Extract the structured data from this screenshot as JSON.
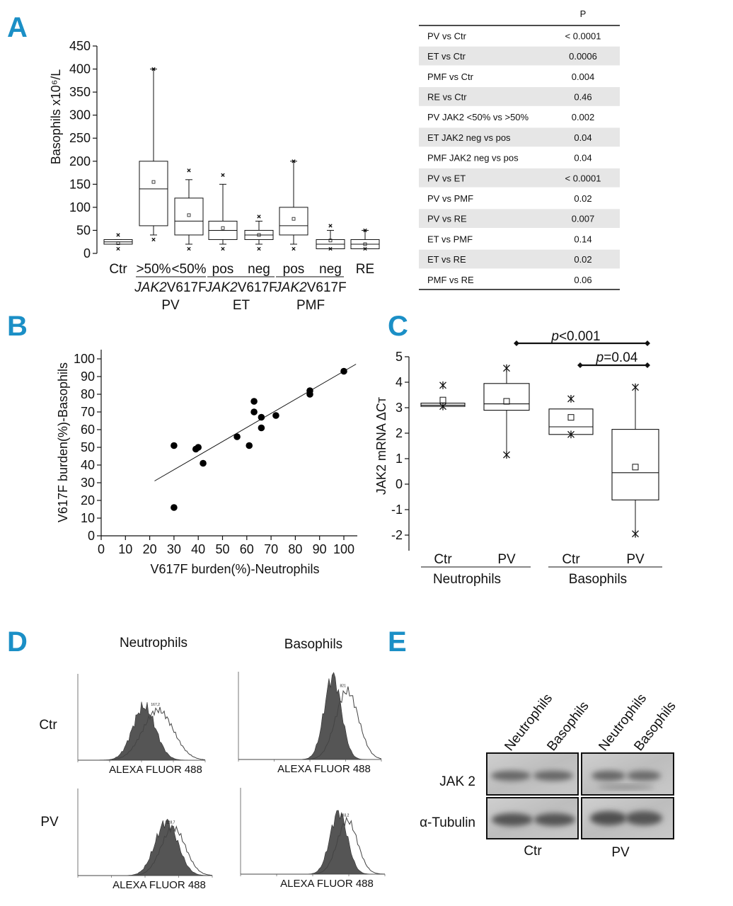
{
  "panels": {
    "a": {
      "label": "A",
      "chart": {
        "type": "box",
        "ylabel": "Basophils x10⁶/L",
        "ylim": [
          0,
          450
        ],
        "yticks": [
          0,
          50,
          100,
          150,
          200,
          250,
          300,
          350,
          400,
          450
        ],
        "categories": [
          "Ctr",
          ">50%",
          "<50%",
          "pos",
          "neg",
          "pos",
          "neg",
          "RE"
        ],
        "groups": [
          {
            "label": "PV",
            "mutation_label": "JAK2V617F"
          },
          {
            "label": "ET",
            "mutation_label": "JAK2V617F"
          },
          {
            "label": "PMF",
            "mutation_label": "JAK2V617F"
          }
        ],
        "boxes": [
          {
            "category": "Ctr",
            "min": 20,
            "q1": 20,
            "median": 25,
            "q3": 30,
            "max": 30,
            "mean": 22,
            "outliers": [
              10,
              40
            ]
          },
          {
            "category": ">50%",
            "min": 40,
            "q1": 60,
            "median": 140,
            "q3": 200,
            "max": 400,
            "mean": 155,
            "outliers": [
              30,
              400
            ]
          },
          {
            "category": "<50%",
            "min": 20,
            "q1": 40,
            "median": 70,
            "q3": 120,
            "max": 160,
            "mean": 83,
            "outliers": [
              10,
              180
            ]
          },
          {
            "category": "pos",
            "min": 20,
            "q1": 30,
            "median": 50,
            "q3": 70,
            "max": 150,
            "mean": 55,
            "outliers": [
              10,
              170
            ]
          },
          {
            "category": "neg",
            "min": 20,
            "q1": 30,
            "median": 40,
            "q3": 50,
            "max": 70,
            "mean": 40,
            "outliers": [
              10,
              80
            ]
          },
          {
            "category": "pos",
            "min": 20,
            "q1": 40,
            "median": 60,
            "q3": 100,
            "max": 200,
            "mean": 75,
            "outliers": [
              10,
              200
            ]
          },
          {
            "category": "neg",
            "min": 10,
            "q1": 10,
            "median": 20,
            "q3": 30,
            "max": 50,
            "mean": 28,
            "outliers": [
              10,
              60
            ]
          },
          {
            "category": "RE",
            "min": 10,
            "q1": 10,
            "median": 20,
            "q3": 30,
            "max": 50,
            "mean": 20,
            "outliers": [
              10,
              50
            ]
          }
        ]
      },
      "table": {
        "header": "P",
        "rows": [
          {
            "comparison": "PV vs Ctr",
            "p": "< 0.0001"
          },
          {
            "comparison": "ET vs Ctr",
            "p": "0.0006"
          },
          {
            "comparison": "PMF vs Ctr",
            "p": "0.004"
          },
          {
            "comparison": "RE vs Ctr",
            "p": "0.46"
          },
          {
            "comparison": "PV JAK2 <50% vs >50%",
            "p": "0.002"
          },
          {
            "comparison": "ET JAK2 neg vs pos",
            "p": "0.04"
          },
          {
            "comparison": "PMF JAK2 neg vs pos",
            "p": "0.04"
          },
          {
            "comparison": "PV vs ET",
            "p": "< 0.0001"
          },
          {
            "comparison": "PV vs PMF",
            "p": "0.02"
          },
          {
            "comparison": "PV vs RE",
            "p": "0.007"
          },
          {
            "comparison": "ET vs PMF",
            "p": "0.14"
          },
          {
            "comparison": "ET vs RE",
            "p": "0.02"
          },
          {
            "comparison": "PMF vs RE",
            "p": "0.06"
          }
        ],
        "shade_color": "#e6e6e6"
      }
    },
    "b": {
      "label": "B",
      "chart_data": {
        "type": "scatter",
        "xlabel": "V617F burden(%)-Neutrophils",
        "ylabel": "V617F burden(%)-Basophils",
        "xlim": [
          0,
          100
        ],
        "ylim": [
          0,
          100
        ],
        "xticks": [
          0,
          10,
          20,
          30,
          40,
          50,
          60,
          70,
          80,
          90,
          100
        ],
        "yticks": [
          0,
          10,
          20,
          30,
          40,
          50,
          60,
          70,
          80,
          90,
          100
        ],
        "points": [
          [
            30,
            51
          ],
          [
            30,
            16
          ],
          [
            39,
            49
          ],
          [
            40,
            50
          ],
          [
            42,
            41
          ],
          [
            56,
            56
          ],
          [
            61,
            51
          ],
          [
            63,
            76
          ],
          [
            63,
            70
          ],
          [
            66,
            67
          ],
          [
            66,
            61
          ],
          [
            72,
            68
          ],
          [
            86,
            82
          ],
          [
            86,
            80
          ],
          [
            100,
            93
          ]
        ],
        "fit_line": {
          "x": [
            22,
            105
          ],
          "y": [
            31,
            97
          ]
        }
      }
    },
    "c": {
      "label": "C",
      "chart": {
        "type": "box",
        "ylabel": "JAK2 mRNA ΔCт",
        "ylim": [
          -2,
          5
        ],
        "yticks": [
          -2,
          -1,
          0,
          1,
          2,
          3,
          4,
          5
        ],
        "categories": [
          "Ctr",
          "PV",
          "Ctr",
          "PV"
        ],
        "groups": [
          "Neutrophils",
          "Basophils"
        ],
        "boxes": [
          {
            "category": "Ctr",
            "min": 3.05,
            "q1": 3.05,
            "median": 3.1,
            "q3": 3.18,
            "max": 3.18,
            "mean": 3.3,
            "outliers": [
              3.05,
              3.88
            ]
          },
          {
            "category": "PV",
            "min": 1.15,
            "q1": 2.9,
            "median": 3.15,
            "q3": 3.95,
            "max": 4.55,
            "mean": 3.25,
            "outliers": [
              1.15,
              4.55
            ]
          },
          {
            "category": "Ctr",
            "min": 1.95,
            "q1": 1.95,
            "median": 2.25,
            "q3": 2.95,
            "max": 2.95,
            "mean": 2.62,
            "outliers": [
              1.95,
              3.35
            ]
          },
          {
            "category": "PV",
            "min": -1.95,
            "q1": -0.62,
            "median": 0.45,
            "q3": 2.15,
            "max": 3.8,
            "mean": 0.67,
            "outliers": [
              -1.95,
              3.8
            ]
          }
        ],
        "annotations": [
          {
            "text": "p<0.001",
            "from": 2,
            "to": 4
          },
          {
            "text": "p=0.04",
            "from": 3,
            "to": 4
          }
        ]
      }
    },
    "d": {
      "label": "D",
      "col_titles": [
        "Neutrophils",
        "Basophils"
      ],
      "row_titles": [
        "Ctr",
        "PV"
      ],
      "axis_label": "ALEXA FLUOR 488",
      "peaks": [
        "167,2",
        "821",
        "128,7",
        "393,2"
      ],
      "fill_color": "#555555"
    },
    "e": {
      "label": "E",
      "lane_labels": [
        "Neutrophils",
        "Basophils",
        "Neutrophils",
        "Basophils"
      ],
      "row_labels": [
        "JAK 2",
        "α-Tubulin"
      ],
      "group_labels": [
        "Ctr",
        "PV"
      ]
    }
  }
}
